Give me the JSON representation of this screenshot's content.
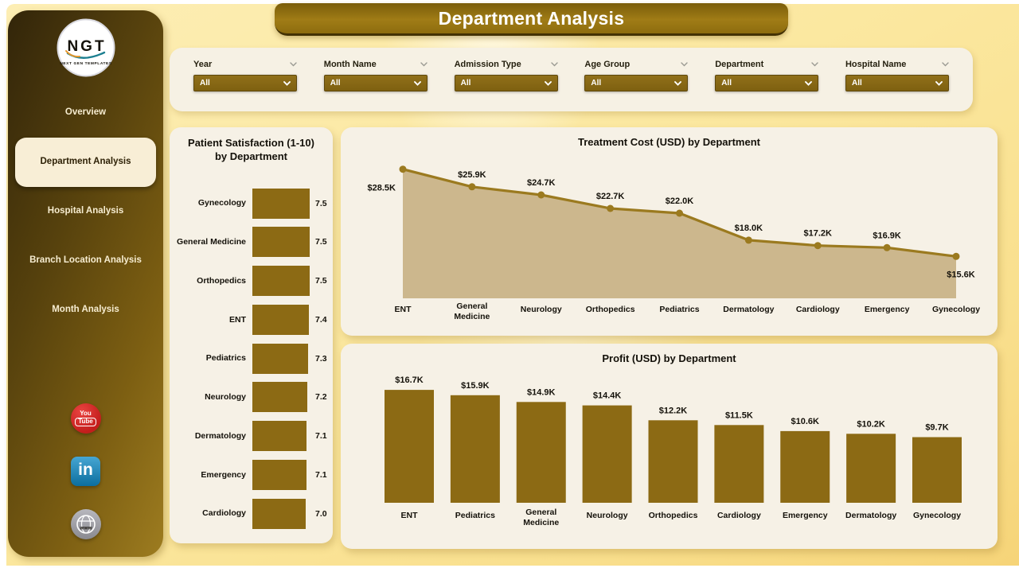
{
  "header": {
    "title": "Department Analysis"
  },
  "sidebar": {
    "logo": {
      "text": "NGT",
      "subtext": "NEXT GEN TEMPLATES"
    },
    "items": [
      {
        "label": "Overview",
        "active": false
      },
      {
        "label": "Department Analysis",
        "active": true
      },
      {
        "label": "Hospital Analysis",
        "active": false
      },
      {
        "label": "Branch Location Analysis",
        "active": false
      },
      {
        "label": "Month Analysis",
        "active": false
      }
    ],
    "social": [
      {
        "icon": "youtube",
        "lines": [
          "You",
          "Tube"
        ]
      },
      {
        "icon": "linkedin",
        "label": "in"
      },
      {
        "icon": "website",
        "label": "www"
      }
    ]
  },
  "filters": [
    {
      "label": "Year",
      "value": "All"
    },
    {
      "label": "Month Name",
      "value": "All"
    },
    {
      "label": "Admission Type",
      "value": "All"
    },
    {
      "label": "Age Group",
      "value": "All"
    },
    {
      "label": "Department",
      "value": "All"
    },
    {
      "label": "Hospital Name",
      "value": "All"
    }
  ],
  "colors": {
    "accent": "#8c6a14",
    "line": "#9b7a1f",
    "area_fill": "#c9b388",
    "banner_dark": "#7a5d0a",
    "banner_light": "#a07c16",
    "sidebar_dark": "#32250a",
    "sidebar_light": "#9d7c20",
    "card_bg": "#f6f1e6",
    "page_bg": "#fbe79e",
    "youtube_red": "#d32421",
    "linkedin_blue": "#0e76a8",
    "website_gray": "#97979d",
    "label_text": "#14110a"
  },
  "chart_data": [
    {
      "type": "bar",
      "orientation": "horizontal",
      "title": "Patient Satisfaction (1-10) by Department",
      "categories": [
        "Gynecology",
        "General Medicine",
        "Orthopedics",
        "ENT",
        "Pediatrics",
        "Neurology",
        "Dermatology",
        "Emergency",
        "Cardiology"
      ],
      "values": [
        7.5,
        7.5,
        7.5,
        7.4,
        7.3,
        7.2,
        7.1,
        7.1,
        7.0
      ],
      "labels": [
        "7.5",
        "7.5",
        "7.5",
        "7.4",
        "7.3",
        "7.2",
        "7.1",
        "7.1",
        "7.0"
      ],
      "xlim": [
        0,
        7.5
      ],
      "grid": false,
      "legend": false
    },
    {
      "type": "area",
      "title": "Treatment Cost (USD) by Department",
      "categories": [
        "ENT",
        "General Medicine",
        "Neurology",
        "Orthopedics",
        "Pediatrics",
        "Dermatology",
        "Cardiology",
        "Emergency",
        "Gynecology"
      ],
      "values": [
        28.5,
        25.9,
        24.7,
        22.7,
        22.0,
        18.0,
        17.2,
        16.9,
        15.6
      ],
      "labels": [
        "$28.5K",
        "$25.9K",
        "$24.7K",
        "$22.7K",
        "$22.0K",
        "$18.0K",
        "$17.2K",
        "$16.9K",
        "$15.6K"
      ],
      "unit": "USD thousands",
      "ylim": [
        9.4,
        30
      ],
      "grid": false,
      "legend": false
    },
    {
      "type": "bar",
      "orientation": "vertical",
      "title": "Profit (USD) by Department",
      "categories": [
        "ENT",
        "Pediatrics",
        "General Medicine",
        "Neurology",
        "Orthopedics",
        "Cardiology",
        "Emergency",
        "Dermatology",
        "Gynecology"
      ],
      "values": [
        16.7,
        15.9,
        14.9,
        14.4,
        12.2,
        11.5,
        10.6,
        10.2,
        9.7
      ],
      "labels": [
        "$16.7K",
        "$15.9K",
        "$14.9K",
        "$14.4K",
        "$12.2K",
        "$11.5K",
        "$10.6K",
        "$10.2K",
        "$9.7K"
      ],
      "unit": "USD thousands",
      "ylim": [
        0,
        18
      ],
      "grid": false,
      "legend": false
    }
  ]
}
